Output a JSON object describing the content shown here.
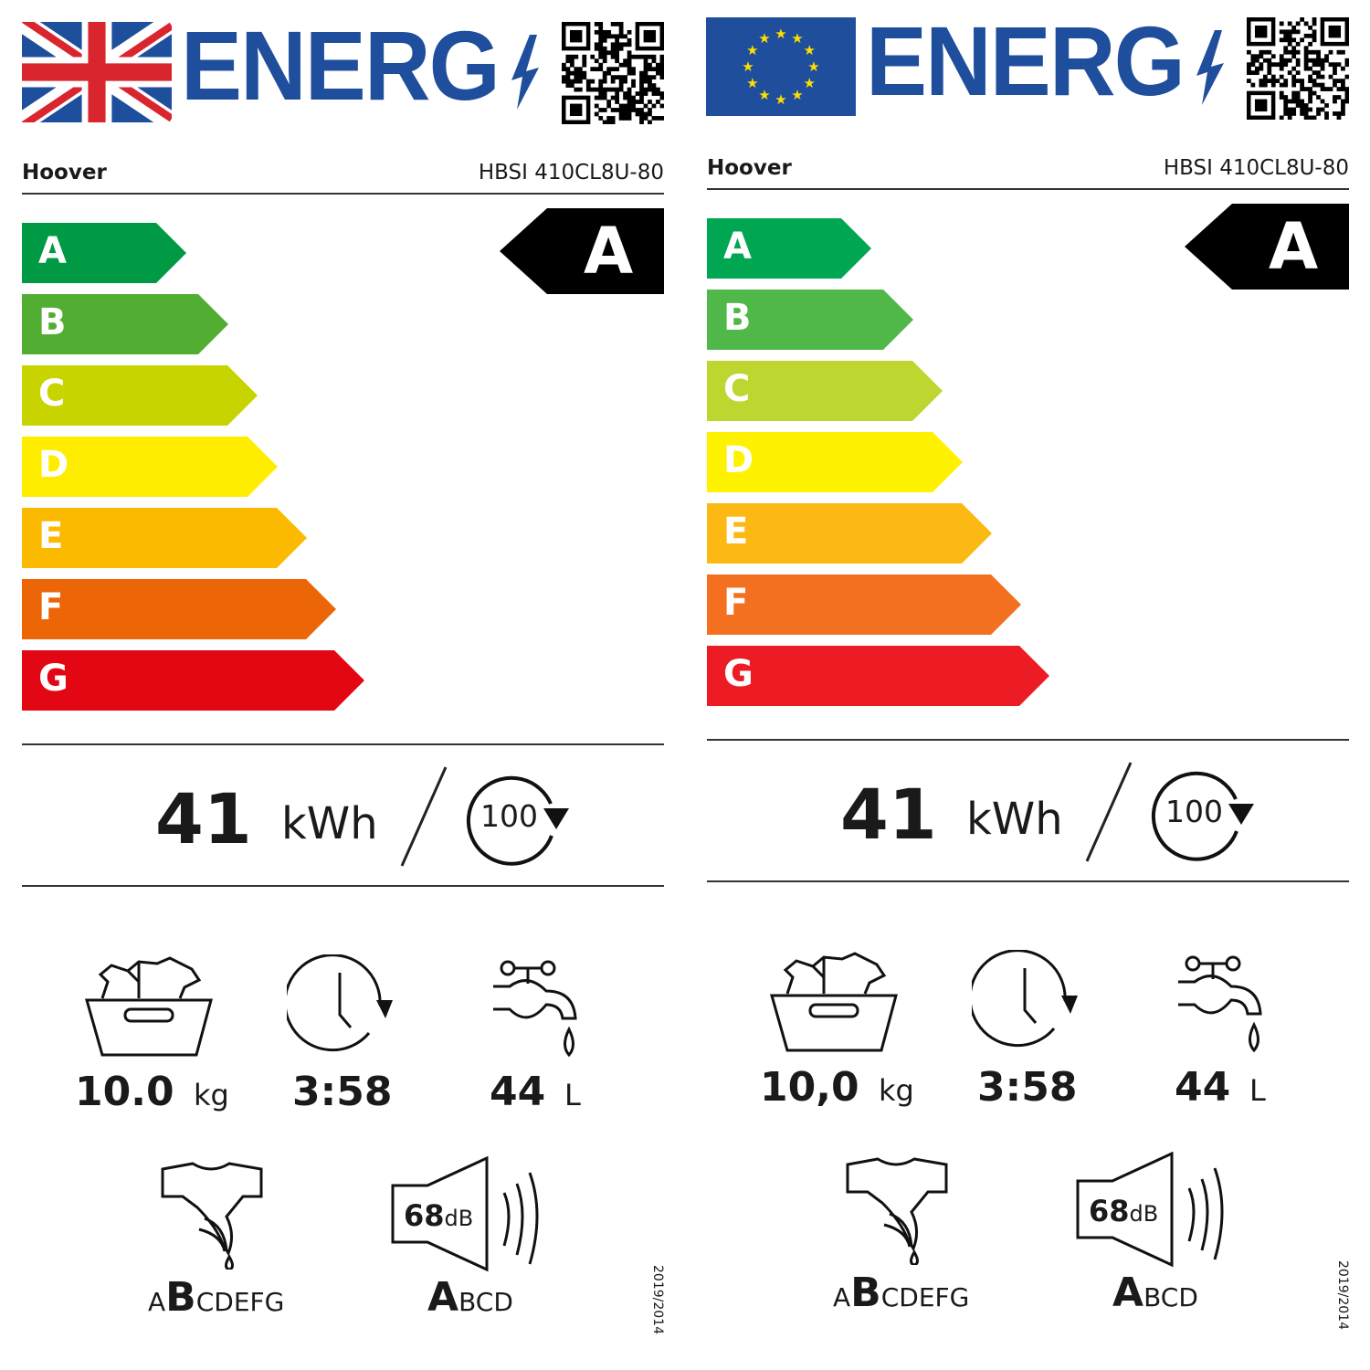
{
  "labels": [
    {
      "flag": "uk-flag",
      "energy_title": "ENERG",
      "brand": "Hoover",
      "model": "HBSI 410CL8U-80",
      "scale": [
        "A",
        "B",
        "C",
        "D",
        "E",
        "F",
        "G"
      ],
      "scale_colors": [
        "#009a44",
        "#52ae32",
        "#c8d400",
        "#ffed00",
        "#fbb900",
        "#ec6608",
        "#e30613"
      ],
      "rating": "A",
      "energy_value": "41",
      "energy_unit": "kWh",
      "cycles": "100",
      "capacity": "10.0",
      "capacity_unit": "kg",
      "duration": "3:58",
      "water": "44",
      "water_unit": "L",
      "spin_scale": [
        "A",
        "B",
        "C",
        "D",
        "E",
        "F",
        "G"
      ],
      "spin_class": "B",
      "noise": "68",
      "noise_unit": "dB",
      "noise_scale": [
        "A",
        "B",
        "C",
        "D"
      ],
      "noise_class": "A",
      "regulation": "2019/2014"
    },
    {
      "flag": "eu-flag",
      "energy_title": "ENERG",
      "brand": "Hoover",
      "model": "HBSI 410CL8U-80",
      "scale": [
        "A",
        "B",
        "C",
        "D",
        "E",
        "F",
        "G"
      ],
      "scale_colors": [
        "#00a651",
        "#50b848",
        "#bed62f",
        "#fff200",
        "#fdb913",
        "#f37021",
        "#ed1c24"
      ],
      "rating": "A",
      "energy_value": "41",
      "energy_unit": "kWh",
      "cycles": "100",
      "capacity": "10,0",
      "capacity_unit": "kg",
      "duration": "3:58",
      "water": "44",
      "water_unit": "L",
      "spin_scale": [
        "A",
        "B",
        "C",
        "D",
        "E",
        "F",
        "G"
      ],
      "spin_class": "B",
      "noise": "68",
      "noise_unit": "dB",
      "noise_scale": [
        "A",
        "B",
        "C",
        "D"
      ],
      "noise_class": "A",
      "regulation": "2019/2014"
    }
  ],
  "colors": {
    "energy_blue": "#1f4e9d",
    "uk_red": "#d9262e",
    "uk_blue": "#1d4f9c",
    "eu_blue": "#1f4e9d",
    "eu_star": "#ffdd00"
  }
}
